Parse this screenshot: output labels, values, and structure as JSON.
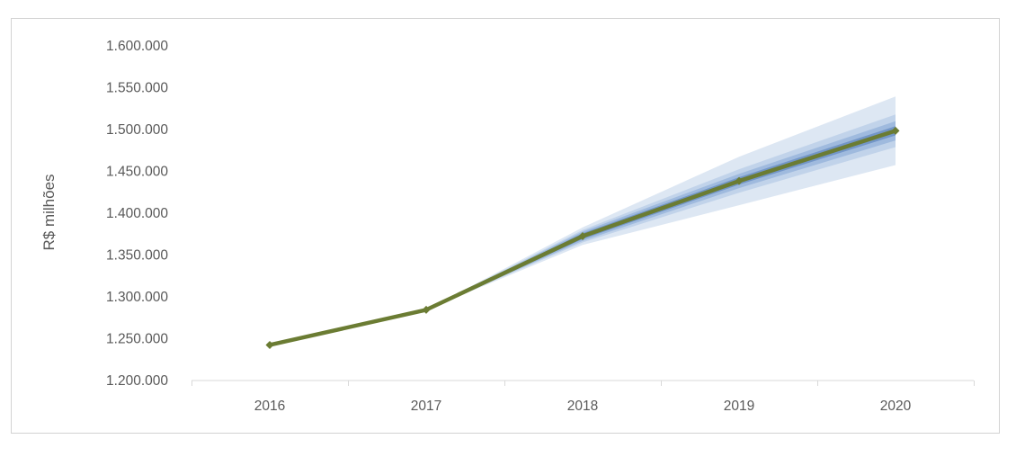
{
  "window": {
    "background_color": "#ffffff",
    "frame_border_color": "#d3d3d3"
  },
  "chart_data": {
    "type": "line",
    "subtype": "fan-projection",
    "title": "",
    "xlabel": "",
    "ylabel": "R$ milhões",
    "grid": false,
    "legend_position": "none",
    "axis_line_color": "#d9d9d9",
    "tick_text_color": "#595959",
    "categories": [
      "2016",
      "2017",
      "2018",
      "2019",
      "2020"
    ],
    "series": [
      {
        "name": "projecao-central",
        "color": "#6b7c33",
        "marker": "diamond",
        "values": [
          1242000,
          1284000,
          1372000,
          1438000,
          1498000
        ]
      }
    ],
    "fan_bands": [
      {
        "name": "banda-externa",
        "color": "#dde7f3",
        "half_widths": [
          null,
          0,
          10500,
          29000,
          41000
        ]
      },
      {
        "name": "banda-intermediaria",
        "color": "#c1d3ea",
        "half_widths": [
          null,
          0,
          7500,
          14000,
          19500
        ]
      },
      {
        "name": "banda-media",
        "color": "#9fbade",
        "half_widths": [
          null,
          0,
          5500,
          8500,
          11500
        ]
      },
      {
        "name": "banda-interna",
        "color": "#7396c8",
        "half_widths": [
          null,
          0,
          3500,
          4500,
          5500
        ]
      }
    ],
    "y_axis": {
      "min": 1200000,
      "max": 1600000,
      "step": 50000,
      "tick_labels": [
        "1.200.000",
        "1.250.000",
        "1.300.000",
        "1.350.000",
        "1.400.000",
        "1.450.000",
        "1.500.000",
        "1.550.000",
        "1.600.000"
      ]
    },
    "x_axis": {
      "labels": [
        "2016",
        "2017",
        "2018",
        "2019",
        "2020"
      ]
    }
  }
}
